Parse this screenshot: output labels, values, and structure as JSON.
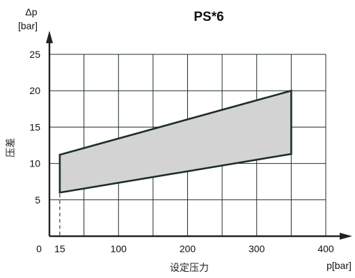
{
  "chart_data": {
    "type": "area",
    "title": "PS*6",
    "ylabel_symbol": "Δp",
    "ylabel_unit": "[bar]",
    "ylabel_text": "压差",
    "xlabel_unit": "p[bar]",
    "xlabel_text": "设定压力",
    "xlim": [
      0,
      400
    ],
    "ylim": [
      0,
      25
    ],
    "x_origin_label": "0",
    "x_ticks": [
      {
        "value": 15,
        "label": "15"
      },
      {
        "value": 100,
        "label": "100"
      },
      {
        "value": 200,
        "label": "200"
      },
      {
        "value": 300,
        "label": "300"
      },
      {
        "value": 400,
        "label": "400"
      }
    ],
    "y_ticks": [
      {
        "value": 5,
        "label": "5"
      },
      {
        "value": 10,
        "label": "10"
      },
      {
        "value": 15,
        "label": "15"
      },
      {
        "value": 20,
        "label": "20"
      },
      {
        "value": 25,
        "label": "25"
      }
    ],
    "x_gridlines": [
      50,
      100,
      150,
      200,
      250,
      300,
      350,
      400
    ],
    "y_gridlines": [
      5,
      10,
      15,
      20,
      25
    ],
    "grid": true,
    "series": [
      {
        "upper": [
          {
            "x": 15,
            "y": 11.2
          },
          {
            "x": 350,
            "y": 20
          }
        ],
        "lower": [
          {
            "x": 15,
            "y": 6
          },
          {
            "x": 350,
            "y": 11.3
          }
        ]
      }
    ],
    "fill_color": "#d3d3d3",
    "outline_color": "#1e2e27",
    "grid_color": "#1e2e27"
  }
}
